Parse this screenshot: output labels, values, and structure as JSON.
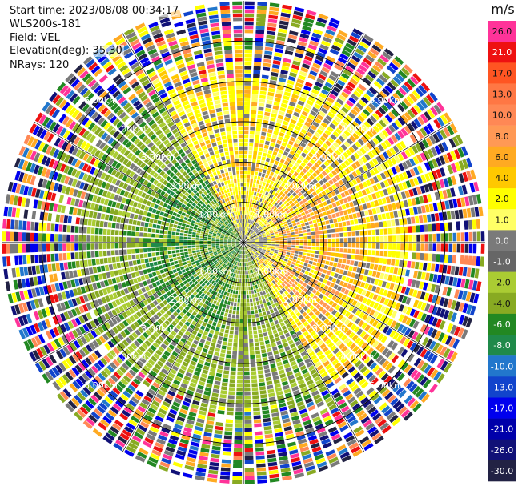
{
  "chart_data": {
    "type": "ppi-polar-radar",
    "meta": {
      "start_time": "Start time: 2023/08/08 00:34:17",
      "instrument": "WLS200s-181",
      "field": "Field: VEL",
      "elevation": "Elevation(deg): 35.30",
      "nrays": "NRays: 120"
    },
    "range_rings_km": [
      1.0,
      2.0,
      3.0,
      4.0,
      5.0
    ],
    "ring_labels": [
      "1.00km",
      "2.00km",
      "3.00km",
      "4.00km",
      "5.00km"
    ],
    "max_range_km": 6.0,
    "n_rays": 120,
    "colorbar": {
      "unit": "m/s",
      "ticks": [
        "26.0",
        "21.0",
        "17.0",
        "13.0",
        "10.0",
        "8.0",
        "6.0",
        "4.0",
        "2.0",
        "1.0",
        "0.0",
        "-1.0",
        "-2.0",
        "-4.0",
        "-6.0",
        "-8.0",
        "-10.0",
        "-13.0",
        "-17.0",
        "-21.0",
        "-26.0",
        "-30.0"
      ],
      "colors": [
        "#ff3399",
        "#ee1111",
        "#ff5522",
        "#ff7744",
        "#ff8855",
        "#ff9955",
        "#ffaa22",
        "#ffc800",
        "#ffff00",
        "#ffff66",
        "#7a7a7a",
        "#666666",
        "#aacc33",
        "#88aa22",
        "#228822",
        "#1f8a4a",
        "#2277cc",
        "#1144cc",
        "#0000ee",
        "#0000aa",
        "#111177",
        "#222244"
      ]
    }
  }
}
